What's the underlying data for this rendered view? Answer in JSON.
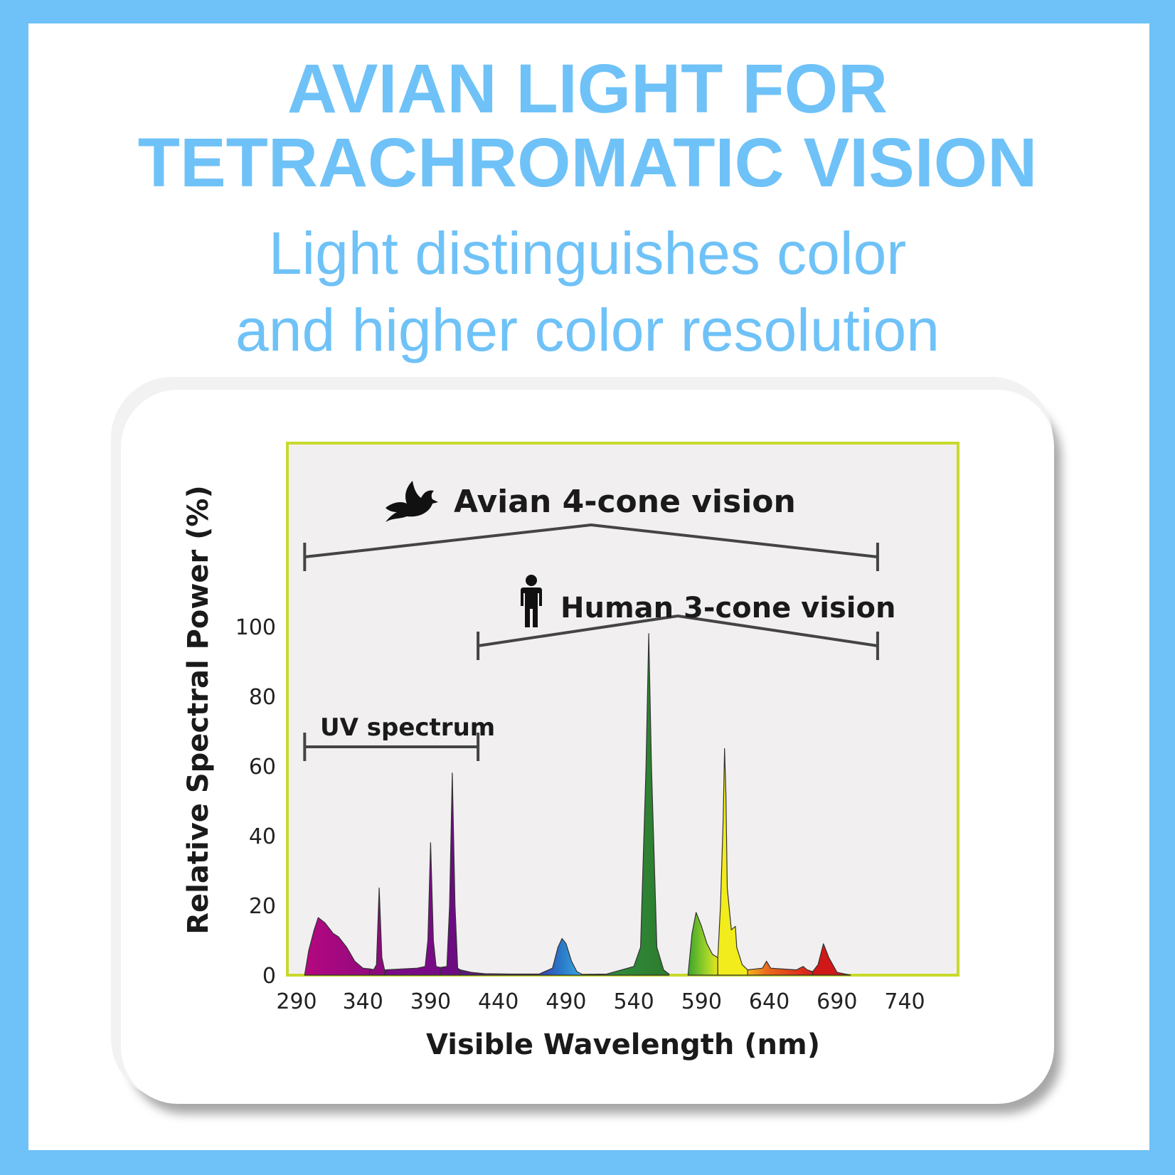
{
  "header": {
    "title_lines": [
      "AVIAN LIGHT FOR",
      "TETRACHROMATIC VISION"
    ],
    "subtitle_lines": [
      "Light distinguishes color",
      "and higher color resolution"
    ]
  },
  "colors": {
    "accent": "#6fc2f7",
    "plot_bg": "#f1eff0",
    "plot_border": "#c8d92c",
    "bracket": "#444444"
  },
  "chart_data": {
    "type": "area",
    "title": "",
    "xlabel": "Visible Wavelength (nm)",
    "ylabel": "Relative Spectral Power (%)",
    "xlim": [
      290,
      740
    ],
    "ylim": [
      0,
      100
    ],
    "x_ticks": [
      "290",
      "340",
      "390",
      "440",
      "490",
      "540",
      "590",
      "640",
      "690",
      "740"
    ],
    "y_ticks": [
      "0",
      "20",
      "40",
      "60",
      "80",
      "100"
    ],
    "grid": false,
    "annotations": [
      {
        "label": "Avian 4-cone vision",
        "icon": "bird-icon",
        "range": [
          297,
          720
        ]
      },
      {
        "label": "Human 3-cone vision",
        "icon": "person-icon",
        "range": [
          425,
          720
        ]
      },
      {
        "label": "UV spectrum",
        "range": [
          297,
          425
        ]
      }
    ],
    "series": [
      {
        "peaks": [
          {
            "from": 297,
            "to": 345,
            "color": "#a3087f",
            "points": [
              [
                297,
                0
              ],
              [
                300,
                7
              ],
              [
                304,
                13
              ],
              [
                307,
                16.5
              ],
              [
                312,
                15
              ],
              [
                318,
                12
              ],
              [
                322,
                11
              ],
              [
                328,
                8
              ],
              [
                334,
                4
              ],
              [
                340,
                2
              ],
              [
                345,
                1.8
              ]
            ]
          },
          {
            "from": 345,
            "to": 355,
            "color": "#8c0b7a",
            "points": [
              [
                345,
                1.8
              ],
              [
                348,
                1.6
              ],
              [
                350,
                3
              ],
              [
                352,
                25
              ],
              [
                354,
                5
              ],
              [
                356,
                1.5
              ]
            ]
          },
          {
            "from": 356,
            "to": 397,
            "color": "#7a0b86",
            "points": [
              [
                356,
                1.5
              ],
              [
                380,
                2
              ],
              [
                386,
                2.5
              ],
              [
                388,
                10
              ],
              [
                390,
                38
              ],
              [
                392,
                10
              ],
              [
                394,
                2.5
              ],
              [
                397,
                2.2
              ]
            ]
          },
          {
            "from": 397,
            "to": 412,
            "color": "#6c0b82",
            "points": [
              [
                397,
                2.2
              ],
              [
                402,
                2.5
              ],
              [
                404,
                20
              ],
              [
                406,
                58
              ],
              [
                408,
                20
              ],
              [
                410,
                2
              ],
              [
                412,
                1.5
              ]
            ]
          },
          {
            "from": 412,
            "to": 470,
            "color": "#5a1a7a",
            "points": [
              [
                412,
                1.5
              ],
              [
                420,
                0.8
              ],
              [
                430,
                0.4
              ],
              [
                450,
                0.3
              ],
              [
                470,
                0.3
              ]
            ]
          },
          {
            "from": 470,
            "to": 502,
            "color": "#2a74c4",
            "points": [
              [
                470,
                0.3
              ],
              [
                480,
                2
              ],
              [
                484,
                8
              ],
              [
                487,
                10.5
              ],
              [
                490,
                9
              ],
              [
                494,
                4
              ],
              [
                498,
                1
              ],
              [
                502,
                0.2
              ]
            ]
          },
          {
            "from": 502,
            "to": 550,
            "color": "#2e7d2e",
            "points": [
              [
                502,
                0.2
              ],
              [
                520,
                0.3
              ],
              [
                540,
                2.5
              ],
              [
                545,
                8
              ],
              [
                549,
                60
              ],
              [
                551,
                98
              ],
              [
                553,
                60
              ],
              [
                557,
                8
              ],
              [
                562,
                1.5
              ],
              [
                566,
                0.3
              ]
            ]
          },
          {
            "from": 580,
            "to": 608,
            "color": "#8ccd2a",
            "points": [
              [
                580,
                0
              ],
              [
                583,
                12
              ],
              [
                586,
                18
              ],
              [
                590,
                14
              ],
              [
                594,
                9
              ],
              [
                598,
                6
              ],
              [
                602,
                5
              ]
            ]
          },
          {
            "from": 602,
            "to": 622,
            "color": "#f2ec1c",
            "points": [
              [
                602,
                5
              ],
              [
                604,
                20
              ],
              [
                606,
                45
              ],
              [
                607,
                65
              ],
              [
                608,
                52
              ],
              [
                609,
                25
              ],
              [
                612,
                13
              ],
              [
                615,
                14
              ],
              [
                616,
                8
              ],
              [
                620,
                3
              ],
              [
                624,
                1.5
              ]
            ]
          },
          {
            "from": 624,
            "to": 680,
            "color": "#e0601c",
            "points": [
              [
                624,
                1.5
              ],
              [
                635,
                2
              ],
              [
                638,
                4
              ],
              [
                641,
                2
              ],
              [
                660,
                1.5
              ],
              [
                665,
                2.5
              ],
              [
                668,
                1.5
              ],
              [
                672,
                1
              ]
            ]
          },
          {
            "from": 672,
            "to": 700,
            "color": "#d01818",
            "points": [
              [
                672,
                1
              ],
              [
                676,
                3
              ],
              [
                680,
                9
              ],
              [
                684,
                5
              ],
              [
                690,
                0.8
              ],
              [
                700,
                0
              ]
            ]
          }
        ]
      }
    ]
  }
}
